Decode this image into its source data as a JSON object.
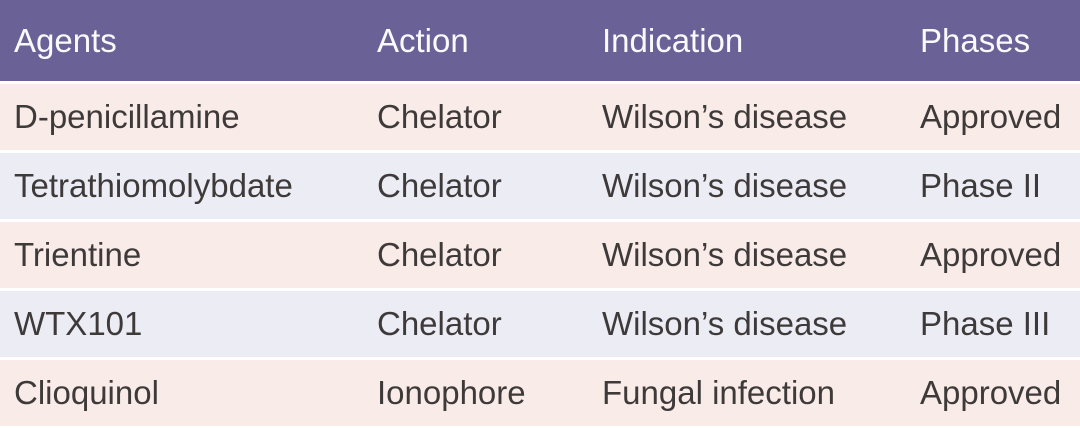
{
  "table": {
    "columns": [
      "Agents",
      "Action",
      "Indication",
      "Phases"
    ],
    "rows": [
      [
        "D-penicillamine",
        "Chelator",
        "Wilson’s disease",
        "Approved"
      ],
      [
        "Tetrathiomolybdate",
        "Chelator",
        "Wilson’s disease",
        "Phase II"
      ],
      [
        "Trientine",
        "Chelator",
        "Wilson’s disease",
        "Approved"
      ],
      [
        "WTX101",
        "Chelator",
        "Wilson’s disease",
        "Phase III"
      ],
      [
        "Clioquinol",
        "Ionophore",
        "Fungal infection",
        "Approved"
      ]
    ]
  },
  "chart_data": {
    "type": "table",
    "title": "",
    "columns": [
      "Agents",
      "Action",
      "Indication",
      "Phases"
    ],
    "rows": [
      {
        "agent": "D-penicillamine",
        "action": "Chelator",
        "indication": "Wilson’s disease",
        "phase": "Approved"
      },
      {
        "agent": "Tetrathiomolybdate",
        "action": "Chelator",
        "indication": "Wilson’s disease",
        "phase": "Phase II"
      },
      {
        "agent": "Trientine",
        "action": "Chelator",
        "indication": "Wilson’s disease",
        "phase": "Approved"
      },
      {
        "agent": "WTX101",
        "action": "Chelator",
        "indication": "Wilson’s disease",
        "phase": "Phase III"
      },
      {
        "agent": "Clioquinol",
        "action": "Ionophore",
        "indication": "Fungal infection",
        "phase": "Approved"
      }
    ],
    "layout_hints": {
      "header_position": "top",
      "row_striping": "alternating",
      "gridlines": "horizontal-white-separators"
    }
  },
  "colors": {
    "header_bg": "#6a6197",
    "header_text": "#faf9fb",
    "row_odd_bg": "#f9ece8",
    "row_even_bg": "#ececf5",
    "body_text": "#3f3a3a",
    "separator": "#ffffff"
  }
}
